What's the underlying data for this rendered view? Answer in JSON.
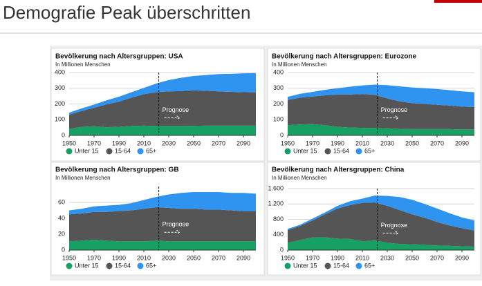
{
  "title": "Demografie Peak überschritten",
  "chart_data": [
    {
      "type": "area",
      "title": "Bevölkerung nach Altersgruppen: USA",
      "subtitle": "In Millionen Menschen",
      "x": [
        1950,
        1960,
        1970,
        1980,
        1990,
        2000,
        2010,
        2020,
        2030,
        2040,
        2050,
        2060,
        2070,
        2080,
        2090,
        2100
      ],
      "xlim": [
        1950,
        2100
      ],
      "xticks": [
        1950,
        1970,
        1990,
        2010,
        2030,
        2050,
        2070,
        2090
      ],
      "ylim": [
        0,
        400
      ],
      "yticks": [
        0,
        100,
        200,
        300,
        400
      ],
      "grid": true,
      "stacked": true,
      "forecast_x": 2022,
      "annotation": "Prognose",
      "series": [
        {
          "name": "Unter 15",
          "color": "#17a063",
          "values": [
            40,
            55,
            58,
            52,
            55,
            60,
            62,
            60,
            60,
            60,
            61,
            62,
            62,
            62,
            62,
            62
          ]
        },
        {
          "name": "15-64",
          "color": "#555555",
          "values": [
            92,
            100,
            118,
            145,
            160,
            180,
            200,
            215,
            220,
            222,
            225,
            222,
            218,
            215,
            213,
            212
          ]
        },
        {
          "name": "65+",
          "color": "#2f93f0",
          "values": [
            13,
            17,
            20,
            26,
            31,
            35,
            40,
            55,
            72,
            85,
            92,
            100,
            110,
            115,
            120,
            122
          ]
        }
      ]
    },
    {
      "type": "area",
      "title": "Bevölkerung nach Altersgruppen: Eurozone",
      "subtitle": "In Millionen Menschen",
      "x": [
        1950,
        1960,
        1970,
        1980,
        1990,
        2000,
        2010,
        2020,
        2030,
        2040,
        2050,
        2060,
        2070,
        2080,
        2090,
        2100
      ],
      "xlim": [
        1950,
        2100
      ],
      "xticks": [
        1950,
        1970,
        1990,
        2010,
        2030,
        2050,
        2070,
        2090
      ],
      "ylim": [
        0,
        400
      ],
      "yticks": [
        0,
        100,
        200,
        300,
        400
      ],
      "grid": true,
      "stacked": true,
      "forecast_x": 2022,
      "annotation": "Prognose",
      "series": [
        {
          "name": "Unter 15",
          "color": "#17a063",
          "values": [
            65,
            70,
            72,
            65,
            55,
            50,
            48,
            48,
            45,
            42,
            40,
            40,
            40,
            40,
            38,
            38
          ]
        },
        {
          "name": "15-64",
          "color": "#555555",
          "values": [
            160,
            170,
            175,
            190,
            205,
            210,
            215,
            210,
            190,
            175,
            165,
            160,
            155,
            150,
            145,
            142
          ]
        },
        {
          "name": "65+",
          "color": "#2f93f0",
          "values": [
            20,
            25,
            30,
            35,
            40,
            50,
            55,
            65,
            85,
            95,
            100,
            100,
            100,
            98,
            97,
            95
          ]
        }
      ]
    },
    {
      "type": "area",
      "title": "Bevölkerung nach Altersgruppen: GB",
      "subtitle": "In Millionen Menschen",
      "x": [
        1950,
        1960,
        1970,
        1980,
        1990,
        2000,
        2010,
        2020,
        2030,
        2040,
        2050,
        2060,
        2070,
        2080,
        2090,
        2100
      ],
      "xlim": [
        1950,
        2100
      ],
      "xticks": [
        1950,
        1970,
        1990,
        2010,
        2030,
        2050,
        2070,
        2090
      ],
      "ylim": [
        0,
        80
      ],
      "yticks": [
        0,
        20,
        40,
        60
      ],
      "grid": true,
      "stacked": true,
      "forecast_x": 2022,
      "annotation": "Prognose",
      "series": [
        {
          "name": "Unter 15",
          "color": "#17a063",
          "values": [
            11,
            12,
            13,
            12,
            11,
            11,
            11,
            12,
            11,
            11,
            11,
            11,
            11,
            11,
            11,
            11
          ]
        },
        {
          "name": "15-64",
          "color": "#555555",
          "values": [
            34,
            34,
            35,
            36,
            38,
            39,
            41,
            42,
            42,
            41,
            41,
            40,
            40,
            39,
            38,
            38
          ]
        },
        {
          "name": "65+",
          "color": "#2f93f0",
          "values": [
            5,
            6,
            7,
            8,
            8,
            9,
            11,
            13,
            17,
            20,
            21,
            22,
            22,
            22,
            23,
            22
          ]
        }
      ]
    },
    {
      "type": "area",
      "title": "Bevölkerung nach Altersgruppen: China",
      "subtitle": "In Millionen Menschen",
      "x": [
        1950,
        1960,
        1970,
        1980,
        1990,
        2000,
        2010,
        2020,
        2030,
        2040,
        2050,
        2060,
        2070,
        2080,
        2090,
        2100
      ],
      "xlim": [
        1950,
        2100
      ],
      "xticks": [
        1950,
        1970,
        1990,
        2010,
        2030,
        2050,
        2070,
        2090
      ],
      "ylim": [
        0,
        1600
      ],
      "yticks": [
        0,
        400,
        800,
        {
          "value": 1200,
          "label": "1.200"
        },
        {
          "value": 1600,
          "label": "1.600"
        }
      ],
      "grid": true,
      "stacked": true,
      "forecast_x": 2022,
      "annotation": "Prognose",
      "series": [
        {
          "name": "Unter 15",
          "color": "#17a063",
          "values": [
            190,
            260,
            330,
            330,
            300,
            290,
            230,
            250,
            190,
            160,
            150,
            140,
            120,
            110,
            100,
            90
          ]
        },
        {
          "name": "15-64",
          "color": "#555555",
          "values": [
            330,
            370,
            440,
            600,
            780,
            880,
            1000,
            990,
            960,
            880,
            780,
            700,
            610,
            530,
            470,
            420
          ]
        },
        {
          "name": "65+",
          "color": "#2f93f0",
          "values": [
            30,
            30,
            50,
            50,
            70,
            100,
            110,
            180,
            260,
            340,
            380,
            360,
            350,
            320,
            280,
            260
          ]
        }
      ]
    }
  ]
}
